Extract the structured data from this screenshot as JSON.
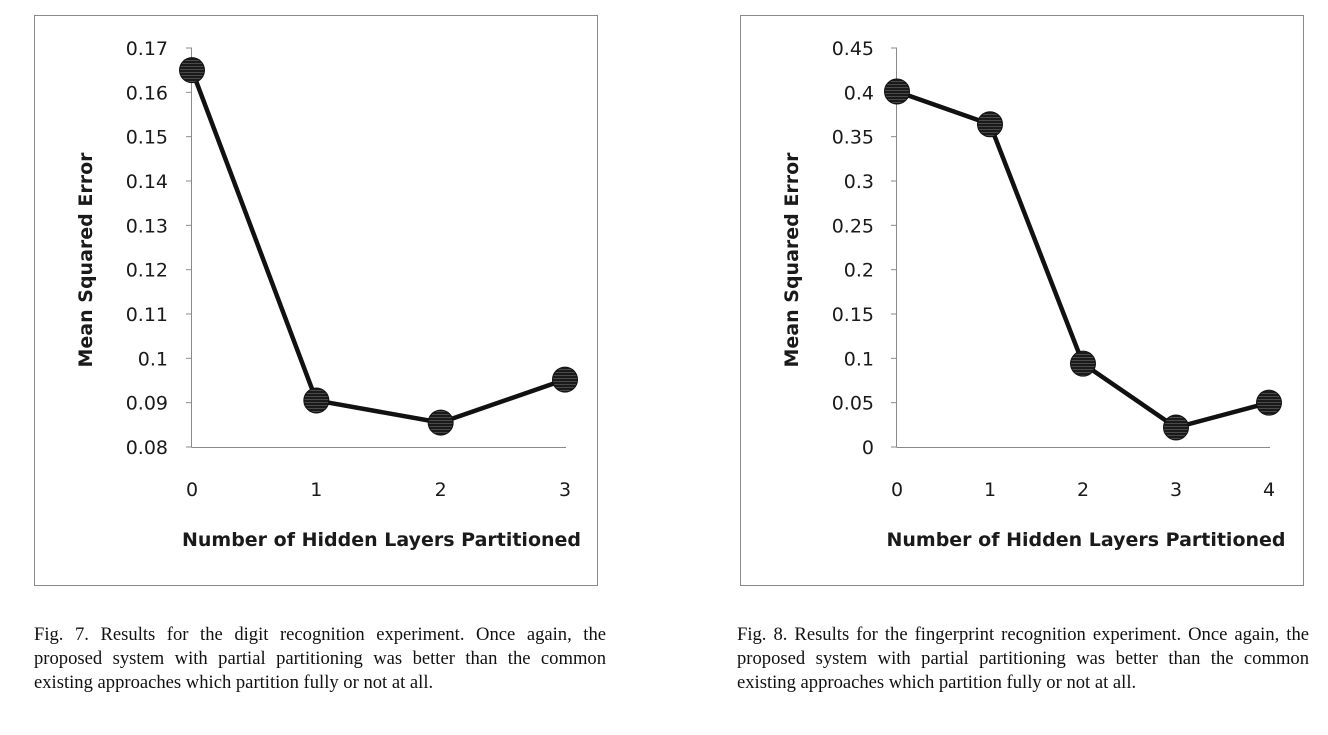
{
  "chart_data": [
    {
      "type": "line",
      "xlabel": "Number of Hidden Layers Partitioned",
      "ylabel": "Mean Squared Error",
      "x": [
        0,
        1,
        2,
        3
      ],
      "series": [
        {
          "values": [
            0.165,
            0.0905,
            0.0855,
            0.0952
          ]
        }
      ],
      "ylim": [
        0.08,
        0.17
      ],
      "yticks": [
        "0.08",
        "0.09",
        "0.1",
        "0.11",
        "0.12",
        "0.13",
        "0.14",
        "0.15",
        "0.16",
        "0.17"
      ],
      "xticks": [
        "0",
        "1",
        "2",
        "3"
      ],
      "grid": false,
      "legend": "none",
      "line_color": "#111111",
      "marker_color": "#1a1a1a"
    },
    {
      "type": "line",
      "xlabel": "Number of Hidden Layers Partitioned",
      "ylabel": "Mean Squared Error",
      "x": [
        0,
        1,
        2,
        3,
        4
      ],
      "series": [
        {
          "values": [
            0.401,
            0.364,
            0.094,
            0.022,
            0.05
          ]
        }
      ],
      "ylim": [
        0,
        0.45
      ],
      "yticks": [
        "0",
        "0.05",
        "0.1",
        "0.15",
        "0.2",
        "0.25",
        "0.3",
        "0.35",
        "0.4",
        "0.45"
      ],
      "xticks": [
        "0",
        "1",
        "2",
        "3",
        "4"
      ],
      "grid": false,
      "legend": "none",
      "line_color": "#111111",
      "marker_color": "#1a1a1a"
    }
  ],
  "captions": {
    "fig7": "Fig. 7.  Results for the digit recognition experiment.  Once again, the proposed system with partial partitioning was better than the common existing approaches which partition fully or not at all.",
    "fig8": "Fig. 8.  Results for the fingerprint recognition experiment. Once again, the proposed system with partial partitioning was better than the common existing approaches which partition fully or not at all."
  }
}
